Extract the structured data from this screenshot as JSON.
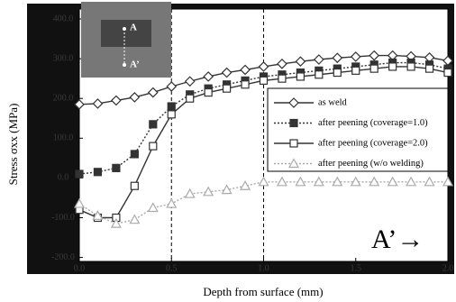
{
  "chart_data": {
    "type": "line",
    "xlabel": "Depth from surface (mm)",
    "ylabel": "Stress σxx (MPa)",
    "xlim": [
      0,
      2
    ],
    "ylim": [
      -210,
      425
    ],
    "xticks": [
      {
        "value": 0,
        "label": "0.0"
      },
      {
        "value": 0.5,
        "label": "0.5"
      },
      {
        "value": 1,
        "label": "1.0"
      },
      {
        "value": 1.5,
        "label": "1.5"
      },
      {
        "value": 2,
        "label": "2.0"
      }
    ],
    "yticks": [
      {
        "value": -200,
        "label": "-200.0"
      },
      {
        "value": -100,
        "label": "-100.0"
      },
      {
        "value": 0,
        "label": "0.0"
      },
      {
        "value": 100,
        "label": "100.0"
      },
      {
        "value": 200,
        "label": "200.0"
      },
      {
        "value": 300,
        "label": "300.0"
      },
      {
        "value": 400,
        "label": "400.0"
      }
    ],
    "vlines": [
      0.5,
      1
    ],
    "x": [
      0,
      0.1,
      0.2,
      0.3,
      0.4,
      0.5,
      0.6,
      0.7,
      0.8,
      0.9,
      1,
      1.1,
      1.2,
      1.3,
      1.4,
      1.5,
      1.6,
      1.7,
      1.8,
      1.9,
      2
    ],
    "series": [
      {
        "name": "as weld",
        "color": "#333333",
        "marker": "diamond",
        "line_style": "solid",
        "values": [
          185,
          187,
          195,
          203,
          215,
          230,
          243,
          255,
          265,
          272,
          280,
          287,
          293,
          298,
          302,
          305,
          308,
          308,
          306,
          303,
          295
        ]
      },
      {
        "name": "after peening (coverage=1.0)",
        "color": "#333333",
        "marker": "filled-square",
        "line_style": "dotted",
        "values": [
          10,
          15,
          25,
          60,
          135,
          180,
          210,
          225,
          235,
          245,
          255,
          260,
          265,
          270,
          275,
          280,
          285,
          290,
          290,
          285,
          275
        ]
      },
      {
        "name": "after peening (coverage=2.0)",
        "color": "#333333",
        "marker": "square",
        "line_style": "solid",
        "values": [
          -80,
          -100,
          -100,
          -20,
          80,
          160,
          200,
          215,
          225,
          235,
          245,
          250,
          255,
          260,
          265,
          270,
          275,
          280,
          280,
          275,
          265
        ]
      },
      {
        "name": "after peening (w/o welding)",
        "color": "#aaaaaa",
        "marker": "triangle",
        "line_style": "dotted",
        "values": [
          -65,
          -95,
          -115,
          -105,
          -75,
          -65,
          -40,
          -35,
          -30,
          -20,
          -10,
          -10,
          -10,
          -10,
          -10,
          -10,
          -10,
          -10,
          -10,
          -10,
          -10
        ]
      }
    ],
    "annotations": [
      "A’→",
      "A",
      "A’"
    ]
  }
}
